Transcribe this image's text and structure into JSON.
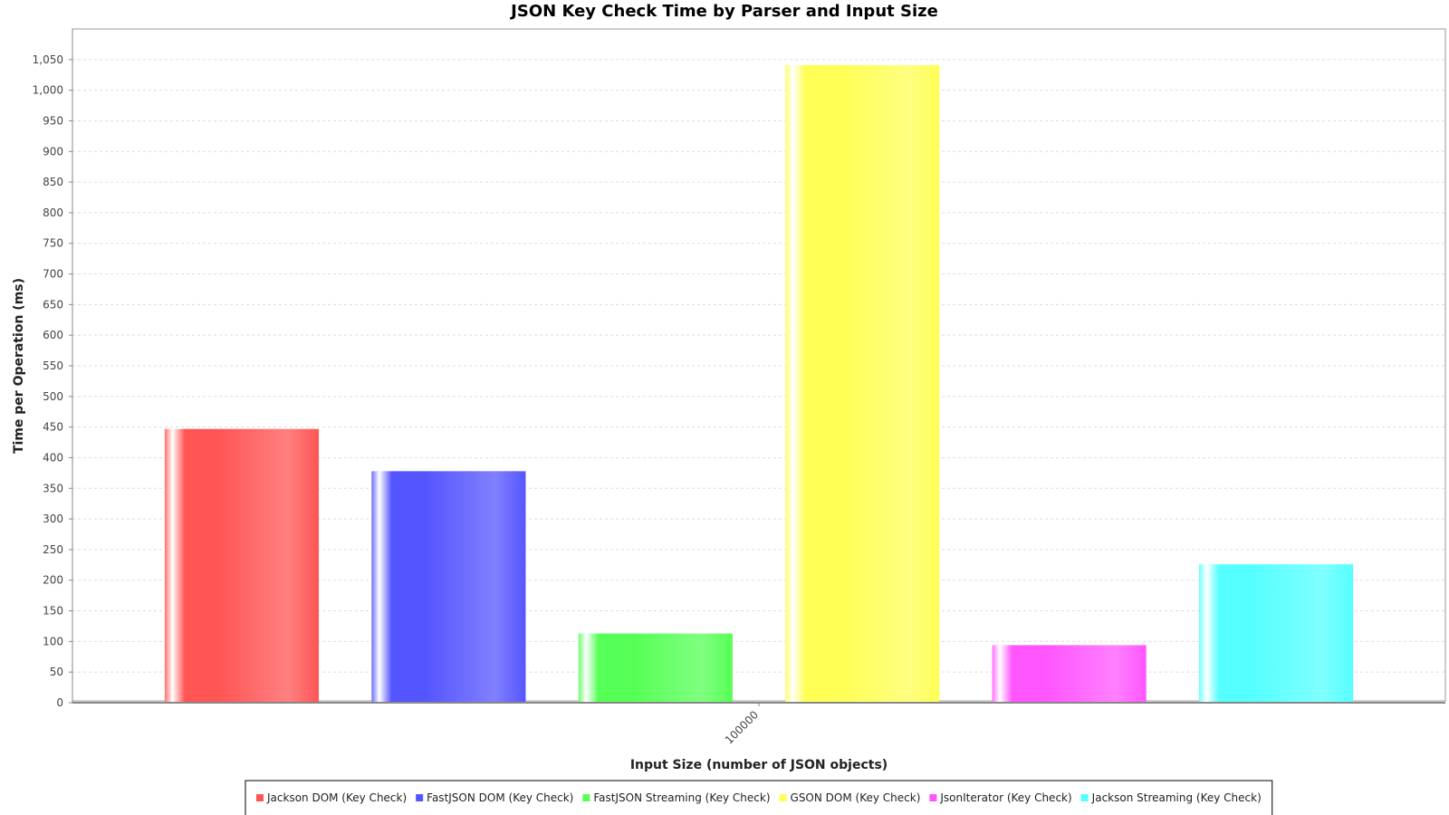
{
  "chart_data": {
    "type": "bar",
    "title": "JSON Key Check Time by Parser and Input Size",
    "xlabel": "Input Size (number of JSON objects)",
    "ylabel": "Time per Operation (ms)",
    "categories": [
      "100000"
    ],
    "ylim": [
      0,
      1100
    ],
    "yticks": [
      0,
      50,
      100,
      150,
      200,
      250,
      300,
      350,
      400,
      450,
      500,
      550,
      600,
      650,
      700,
      750,
      800,
      850,
      900,
      950,
      1000,
      1050
    ],
    "ytick_labels": [
      "0",
      "50",
      "100",
      "150",
      "200",
      "250",
      "300",
      "350",
      "400",
      "450",
      "500",
      "550",
      "600",
      "650",
      "700",
      "750",
      "800",
      "850",
      "900",
      "950",
      "1,000",
      "1,050"
    ],
    "grid": true,
    "legend_position": "bottom",
    "series": [
      {
        "name": "Jackson DOM (Key Check)",
        "values": [
          447
        ],
        "color": "#ff5555"
      },
      {
        "name": "FastJSON DOM (Key Check)",
        "values": [
          378
        ],
        "color": "#5555ff"
      },
      {
        "name": "FastJSON Streaming (Key Check)",
        "values": [
          113
        ],
        "color": "#55ff55"
      },
      {
        "name": "GSON DOM (Key Check)",
        "values": [
          1041
        ],
        "color": "#ffff55"
      },
      {
        "name": "JsonIterator (Key Check)",
        "values": [
          94
        ],
        "color": "#ff55ff"
      },
      {
        "name": "Jackson Streaming (Key Check)",
        "values": [
          226
        ],
        "color": "#55ffff"
      }
    ]
  }
}
